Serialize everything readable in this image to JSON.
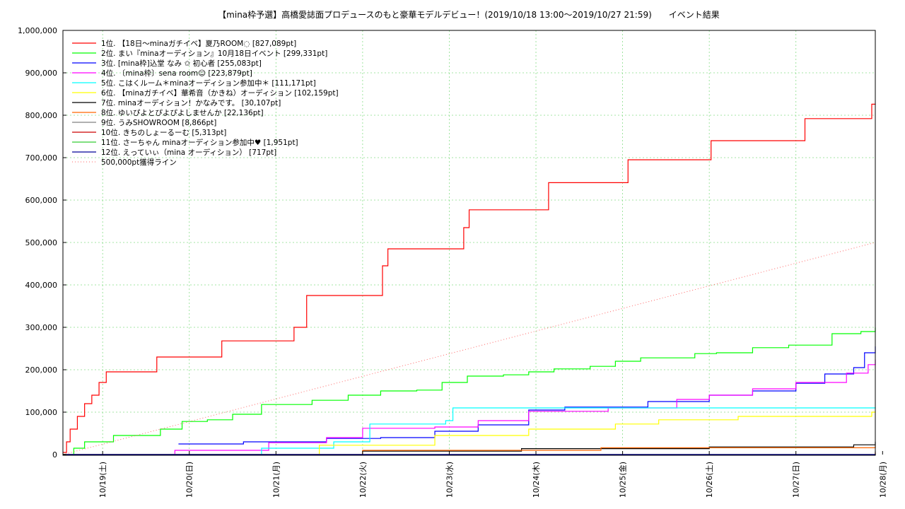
{
  "chart_data": {
    "type": "line",
    "title": "【mina枠予選】高橋愛誌面プロデュースのもと豪華モデルデビュー！(2019/10/18 13:00〜2019/10/27 21:59)　　イベント結果",
    "xlabel": "",
    "ylabel": "",
    "xlim": [
      "2019-10-18 13:00",
      "2019-10-27 21:59"
    ],
    "ylim": [
      0,
      1000000
    ],
    "grid": true,
    "legend_position": "top-left",
    "y_ticks": [
      "0",
      "100,000",
      "200,000",
      "300,000",
      "400,000",
      "500,000",
      "600,000",
      "700,000",
      "800,000",
      "900,000",
      "1,000,000"
    ],
    "x_ticks": [
      "10/19(土)",
      "10/20(日)",
      "10/21(月)",
      "10/22(火)",
      "10/23(水)",
      "10/24(木)",
      "10/25(金)",
      "10/26(土)",
      "10/27(日)",
      "10/28(月)"
    ],
    "series": [
      {
        "name": "1位. 【18日〜minaガチイベ】夏乃ROOM◌ [827,089pt]",
        "color": "#ff0000",
        "x": [
          "2019-10-18 13:00",
          "2019-10-18 14:00",
          "2019-10-18 15:00",
          "2019-10-18 17:00",
          "2019-10-18 19:00",
          "2019-10-18 21:00",
          "2019-10-18 23:00",
          "2019-10-19 01:00",
          "2019-10-19 14:00",
          "2019-10-19 15:00",
          "2019-10-20 08:00",
          "2019-10-20 09:00",
          "2019-10-21 04:00",
          "2019-10-21 05:00",
          "2019-10-21 07:30",
          "2019-10-21 08:30",
          "2019-10-22 04:00",
          "2019-10-22 05:30",
          "2019-10-22 07:00",
          "2019-10-23 02:00",
          "2019-10-23 04:00",
          "2019-10-23 05:30",
          "2019-10-24 02:00",
          "2019-10-24 03:30",
          "2019-10-25 00:00",
          "2019-10-25 01:30",
          "2019-10-26 00:00",
          "2019-10-26 00:30",
          "2019-10-27 01:00",
          "2019-10-27 02:30",
          "2019-10-27 20:00",
          "2019-10-27 21:00",
          "2019-10-27 21:59"
        ],
        "y": [
          5000,
          30000,
          60000,
          90000,
          120000,
          140000,
          170000,
          195000,
          195000,
          230000,
          230000,
          268000,
          268000,
          300000,
          300000,
          375000,
          375000,
          445000,
          485000,
          485000,
          535000,
          577000,
          577000,
          641000,
          641000,
          695000,
          695000,
          740000,
          740000,
          792000,
          792000,
          826000,
          827089
        ]
      },
      {
        "name": "2位. まい『minaオーディション』10月18日イベント [299,331pt]",
        "color": "#00ff00",
        "x": [
          "2019-10-18 13:00",
          "2019-10-18 16:00",
          "2019-10-18 19:00",
          "2019-10-19 03:00",
          "2019-10-19 08:00",
          "2019-10-19 16:00",
          "2019-10-19 22:00",
          "2019-10-20 05:00",
          "2019-10-20 12:00",
          "2019-10-20 20:00",
          "2019-10-21 00:00",
          "2019-10-21 10:00",
          "2019-10-21 20:00",
          "2019-10-22 05:00",
          "2019-10-22 15:00",
          "2019-10-22 22:00",
          "2019-10-23 05:00",
          "2019-10-23 15:00",
          "2019-10-23 22:00",
          "2019-10-24 05:00",
          "2019-10-24 15:00",
          "2019-10-24 22:00",
          "2019-10-25 05:00",
          "2019-10-25 20:00",
          "2019-10-26 02:00",
          "2019-10-26 12:00",
          "2019-10-26 22:00",
          "2019-10-27 10:00",
          "2019-10-27 18:00",
          "2019-10-27 21:59"
        ],
        "y": [
          0,
          15000,
          30000,
          45000,
          45000,
          60000,
          78000,
          82000,
          95000,
          118000,
          118000,
          128000,
          140000,
          150000,
          152000,
          170000,
          185000,
          188000,
          195000,
          202000,
          208000,
          220000,
          228000,
          238000,
          240000,
          252000,
          258000,
          285000,
          290000,
          299331
        ]
      },
      {
        "name": "3位. [mina枠]込堂 なみ ✩ 初心者 [255,083pt]",
        "color": "#0000ff",
        "x": [
          "2019-10-19 21:00",
          "2019-10-20 15:00",
          "2019-10-21 14:00",
          "2019-10-22 05:00",
          "2019-10-22 20:00",
          "2019-10-23 08:00",
          "2019-10-23 22:00",
          "2019-10-24 08:00",
          "2019-10-25 07:00",
          "2019-10-26 00:00",
          "2019-10-26 12:00",
          "2019-10-27 00:00",
          "2019-10-27 08:00",
          "2019-10-27 16:00",
          "2019-10-27 19:00",
          "2019-10-27 21:59"
        ],
        "y": [
          25000,
          30000,
          38000,
          40000,
          55000,
          70000,
          105000,
          112000,
          125000,
          140000,
          150000,
          168000,
          190000,
          205000,
          240000,
          255083
        ]
      },
      {
        "name": "4位. 〔mina枠〕sena room☺ [223,879pt]",
        "color": "#ff00ff",
        "x": [
          "2019-10-18 16:00",
          "2019-10-19 20:00",
          "2019-10-20 22:00",
          "2019-10-21 14:00",
          "2019-10-22 00:00",
          "2019-10-22 20:00",
          "2019-10-23 08:00",
          "2019-10-23 22:00",
          "2019-10-24 20:00",
          "2019-10-25 15:00",
          "2019-10-26 00:00",
          "2019-10-26 12:00",
          "2019-10-27 00:00",
          "2019-10-27 14:00",
          "2019-10-27 20:00",
          "2019-10-27 21:59"
        ],
        "y": [
          0,
          10000,
          28000,
          40000,
          62000,
          65000,
          80000,
          102000,
          110000,
          130000,
          140000,
          155000,
          170000,
          192000,
          212000,
          223879
        ]
      },
      {
        "name": "5位. こはくルーム＊minaオーディション参加中＊ [111,171pt]",
        "color": "#00ffff",
        "x": [
          "2019-10-18 13:00",
          "2019-10-20 20:00",
          "2019-10-21 16:00",
          "2019-10-22 02:00",
          "2019-10-22 23:00",
          "2019-10-23 01:00",
          "2019-10-27 21:59"
        ],
        "y": [
          0,
          15000,
          30000,
          72000,
          80000,
          110000,
          111171
        ]
      },
      {
        "name": "6位. 【minaガチイベ】華希音（かきね）オーディション [102,159pt]",
        "color": "#ffff00",
        "x": [
          "2019-10-18 13:00",
          "2019-10-21 12:00",
          "2019-10-22 20:00",
          "2019-10-23 22:00",
          "2019-10-24 22:00",
          "2019-10-25 10:00",
          "2019-10-26 08:00",
          "2019-10-27 21:00",
          "2019-10-27 21:59"
        ],
        "y": [
          0,
          22000,
          45000,
          60000,
          72000,
          82000,
          90000,
          100000,
          102159
        ]
      },
      {
        "name": "7位. minaオーディション！かなみです。 [30,107pt]",
        "color": "#000000",
        "x": [
          "2019-10-18 13:00",
          "2019-10-22 00:00",
          "2019-10-23 20:00",
          "2019-10-26 00:00",
          "2019-10-27 16:00",
          "2019-10-27 21:59"
        ],
        "y": [
          0,
          8000,
          14000,
          18000,
          23000,
          30107
        ]
      },
      {
        "name": "8位. ゆいぴよとぴよぴよしませんか [22,136pt]",
        "color": "#ff6600",
        "x": [
          "2019-10-18 13:00",
          "2019-10-22 00:00",
          "2019-10-24 18:00",
          "2019-10-27 21:59"
        ],
        "y": [
          0,
          10000,
          16000,
          22136
        ]
      },
      {
        "name": "9位. うみSHOWROOM [8,866pt]",
        "color": "#808080",
        "x": [
          "2019-10-18 13:00",
          "2019-10-27 21:59"
        ],
        "y": [
          0,
          8866
        ]
      },
      {
        "name": "10位. きちのしょーるーむ [5,313pt]",
        "color": "#cc0000",
        "x": [
          "2019-10-18 13:00",
          "2019-10-27 21:59"
        ],
        "y": [
          0,
          5313
        ]
      },
      {
        "name": "11位. さーちゃん minaオーディション参加中♥ [1,951pt]",
        "color": "#33cc33",
        "x": [
          "2019-10-18 13:00",
          "2019-10-27 21:59"
        ],
        "y": [
          0,
          1951
        ]
      },
      {
        "name": "12位. えっていぃ（mina オーディション） [717pt]",
        "color": "#000099",
        "x": [
          "2019-10-18 13:00",
          "2019-10-27 21:59"
        ],
        "y": [
          0,
          717
        ]
      },
      {
        "name": "500,000pt獲得ライン",
        "color": "#ff6666",
        "dashed": true,
        "x": [
          "2019-10-18 13:00",
          "2019-10-27 21:59"
        ],
        "y": [
          0,
          500000
        ]
      }
    ]
  }
}
